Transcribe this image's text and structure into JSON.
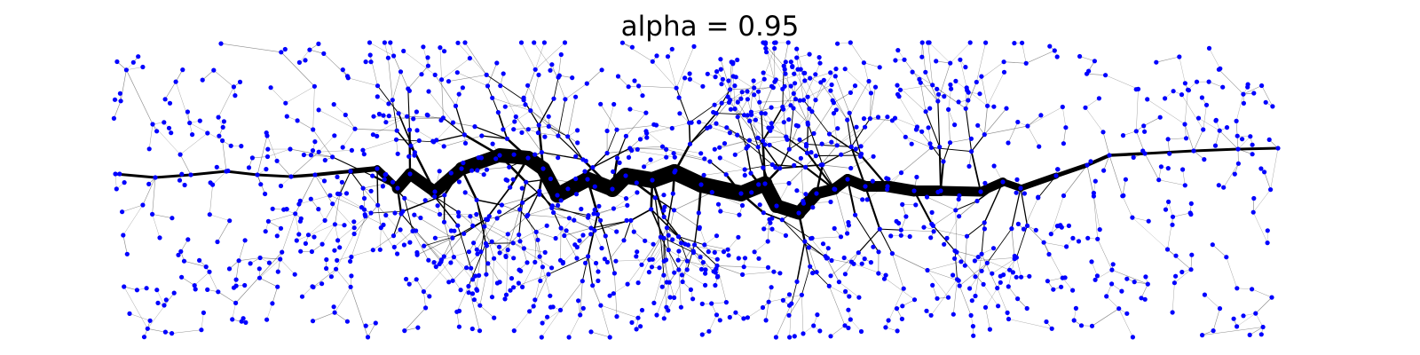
{
  "title": "alpha = 0.95",
  "colors": {
    "node": "#0000ff",
    "edge": "#000000",
    "background": "#ffffff"
  }
}
